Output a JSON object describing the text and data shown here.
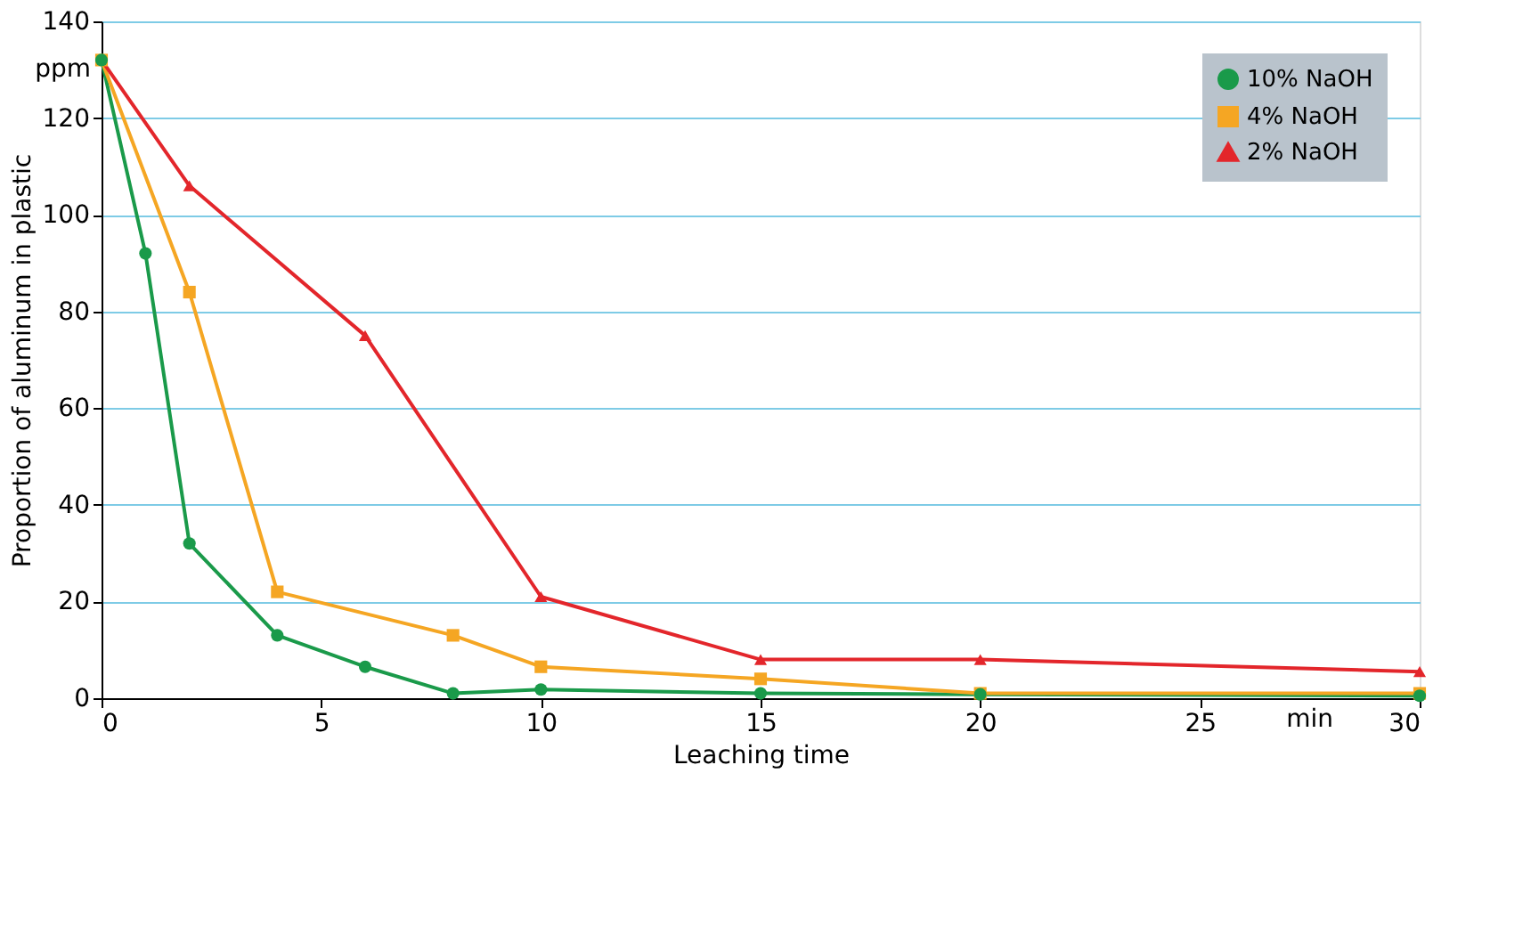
{
  "chart_data": {
    "type": "line",
    "xlabel": "Leaching time",
    "ylabel": "Proportion of aluminum in plastic",
    "xlim": [
      0,
      30
    ],
    "ylim": [
      0,
      140
    ],
    "xticks": [
      0,
      5,
      10,
      15,
      20,
      25,
      30
    ],
    "yticks": [
      0,
      20,
      40,
      60,
      80,
      100,
      120,
      140
    ],
    "grid": "y",
    "legend": "top right",
    "line_style": "solid",
    "annotations": [
      "ppm",
      "min"
    ],
    "series": [
      {
        "name": "10% NaOH",
        "color": "#1a9a4a",
        "marker": "circle",
        "x": [
          0,
          1,
          2,
          4,
          6,
          8,
          10,
          15,
          20,
          30
        ],
        "values": [
          132,
          92,
          32,
          13,
          6.5,
          1,
          1.8,
          1,
          0.8,
          0.5
        ]
      },
      {
        "name": "4% NaOH",
        "color": "#f5a623",
        "marker": "square",
        "x": [
          0,
          2,
          4,
          8,
          10,
          15,
          20,
          30
        ],
        "values": [
          132,
          84,
          22,
          13,
          6.5,
          4,
          1,
          1
        ]
      },
      {
        "name": "2% NaOH",
        "color": "#e3262b",
        "marker": "triangle",
        "x": [
          0,
          2,
          6,
          10,
          15,
          20,
          30
        ],
        "values": [
          132,
          106,
          75,
          21,
          8,
          8,
          5.5
        ]
      }
    ]
  }
}
